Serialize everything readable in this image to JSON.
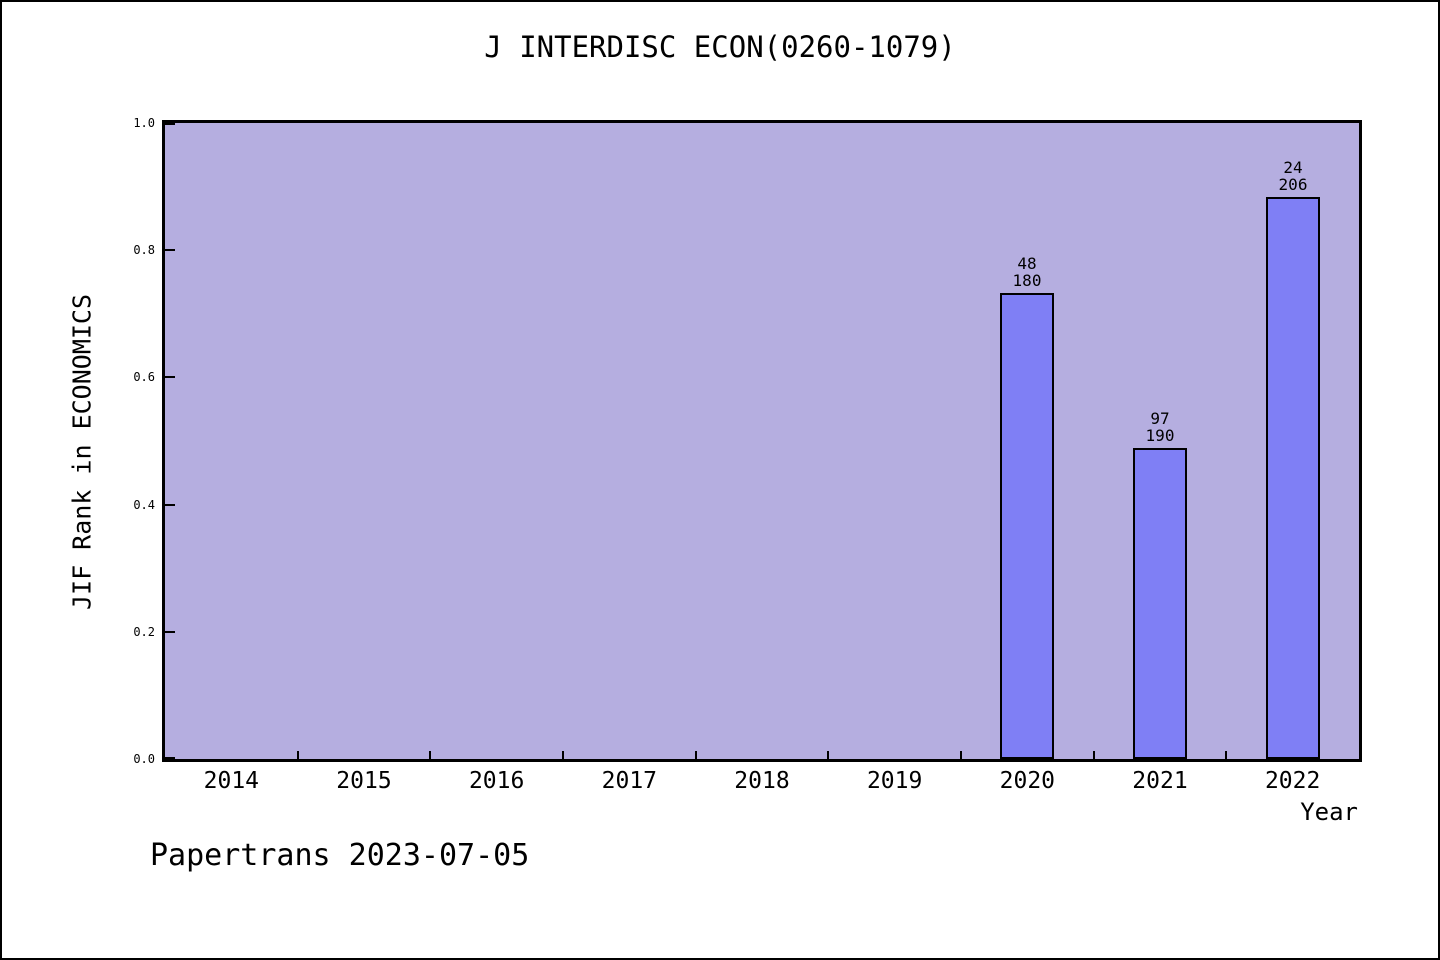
{
  "footer": "Papertrans 2023-07-05",
  "chart_data": {
    "type": "bar",
    "title": "J INTERDISC ECON(0260-1079)",
    "xlabel": "Year",
    "ylabel": "JIF Rank in ECONOMICS",
    "categories": [
      "2014",
      "2015",
      "2016",
      "2017",
      "2018",
      "2019",
      "2020",
      "2021",
      "2022"
    ],
    "ylim": [
      0.0,
      1.0
    ],
    "y_ticks": [
      "0.0",
      "0.2",
      "0.4",
      "0.6",
      "0.8",
      "1.0"
    ],
    "grid": false,
    "legend": "none",
    "bars": [
      {
        "category": "2020",
        "rank": 48,
        "of_total": 180,
        "value": 0.7333,
        "label_lines": [
          "48",
          "180"
        ]
      },
      {
        "category": "2021",
        "rank": 97,
        "of_total": 190,
        "value": 0.4895,
        "label_lines": [
          "97",
          "190"
        ]
      },
      {
        "category": "2022",
        "rank": 24,
        "of_total": 206,
        "value": 0.8835,
        "label_lines": [
          "24",
          "206"
        ]
      }
    ],
    "colors": {
      "plot_background": "#b5aee0",
      "bar_fill": "#7f7ff5",
      "frame": "#000000",
      "text": "#000000"
    }
  }
}
